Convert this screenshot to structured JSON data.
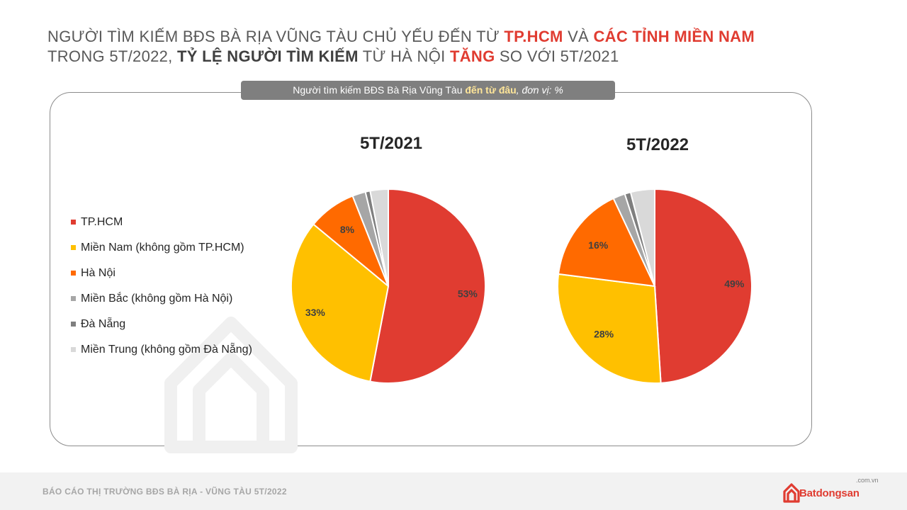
{
  "headline": {
    "line1": [
      {
        "text": "NGƯỜI TÌM KIẾM BĐS BÀ RỊA VŨNG TÀU CHỦ YẾU ĐẾN TỪ ",
        "style": "normal"
      },
      {
        "text": "TP.HCM",
        "style": "red"
      },
      {
        "text": " VÀ ",
        "style": "normal"
      },
      {
        "text": "CÁC TỈNH MIỀN NAM",
        "style": "red"
      }
    ],
    "line2": [
      {
        "text": "TRONG 5T/2022, ",
        "style": "normal"
      },
      {
        "text": "TỶ LỆ NGƯỜI TÌM KIẾM",
        "style": "dark"
      },
      {
        "text": " TỪ HÀ NỘI ",
        "style": "normal"
      },
      {
        "text": "TĂNG",
        "style": "red"
      },
      {
        "text": " SO VỚI 5T/2021",
        "style": "normal"
      }
    ]
  },
  "subtitle": {
    "prefix": "Người tìm kiếm BĐS Bà Rịa Vũng Tàu ",
    "emphasis": "đến từ đâu",
    "suffix": ", đơn vị: %"
  },
  "chart_data": [
    {
      "type": "pie",
      "title": "5T/2021",
      "unit": "%",
      "categories": [
        "TP.HCM",
        "Miền Nam (không gồm TP.HCM)",
        "Hà Nội",
        "Miền Bắc (không gồm Hà Nội)",
        "Đà Nẵng",
        "Miền Trung (không gồm Đà Nẵng)"
      ],
      "values": [
        53,
        33,
        8,
        2.2,
        0.8,
        3
      ],
      "labels": [
        "53%",
        "33%",
        "8%",
        "",
        "",
        ""
      ],
      "colors": [
        "#e03c31",
        "#ffc000",
        "#ff6a00",
        "#a6a6a6",
        "#7f7f7f",
        "#d9d9d9"
      ]
    },
    {
      "type": "pie",
      "title": "5T/2022",
      "unit": "%",
      "categories": [
        "TP.HCM",
        "Miền Nam (không gồm TP.HCM)",
        "Hà Nội",
        "Miền Bắc (không gồm Hà Nội)",
        "Đà Nẵng",
        "Miền Trung (không gồm Đà Nẵng)"
      ],
      "values": [
        49,
        28,
        16,
        2,
        1,
        4
      ],
      "labels": [
        "49%",
        "28%",
        "16%",
        "",
        "",
        ""
      ],
      "colors": [
        "#e03c31",
        "#ffc000",
        "#ff6a00",
        "#a6a6a6",
        "#7f7f7f",
        "#d9d9d9"
      ]
    }
  ],
  "legend": {
    "placement": "left",
    "items": [
      {
        "label": "TP.HCM",
        "color": "#e03c31"
      },
      {
        "label": "Miền Nam (không gồm TP.HCM)",
        "color": "#ffc000"
      },
      {
        "label": "Hà Nội",
        "color": "#ff6a00"
      },
      {
        "label": "Miền Bắc (không gồm Hà Nội)",
        "color": "#a6a6a6"
      },
      {
        "label": "Đà Nẵng",
        "color": "#7f7f7f"
      },
      {
        "label": "Miền Trung (không gồm Đà Nẵng)",
        "color": "#d9d9d9"
      }
    ]
  },
  "footer": {
    "report_title": "BÁO CÁO THỊ TRƯỜNG BĐS BÀ RỊA - VŨNG TÀU 5T/2022",
    "brand_name": "Batdongsan",
    "brand_domain": ".com.vn",
    "brand_color": "#e03c31"
  }
}
